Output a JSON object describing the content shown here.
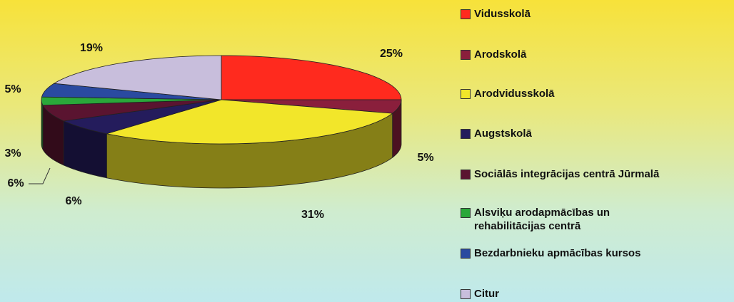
{
  "chart_data": {
    "type": "pie3d",
    "categories": [
      "Vidusskolā",
      "Arodskolā",
      "Arodvidusskolā",
      "Augstskolā",
      "Sociālās integrācijas centrā Jūrmalā",
      "Alsviķu arodapmācības un rehabilitācijas centrā",
      "Bezdarbnieku apmācības kursos",
      "Citur"
    ],
    "values": [
      25,
      5,
      31,
      6,
      6,
      3,
      5,
      19
    ],
    "value_labels": [
      "25%",
      "5%",
      "31%",
      "6%",
      "6%",
      "3%",
      "5%",
      "19%"
    ],
    "colors": [
      "#ff2a1e",
      "#8a1f3c",
      "#f2e62a",
      "#241c5c",
      "#5a1430",
      "#2aa83a",
      "#2a4aa0",
      "#c8bedc"
    ],
    "legend": "right"
  }
}
